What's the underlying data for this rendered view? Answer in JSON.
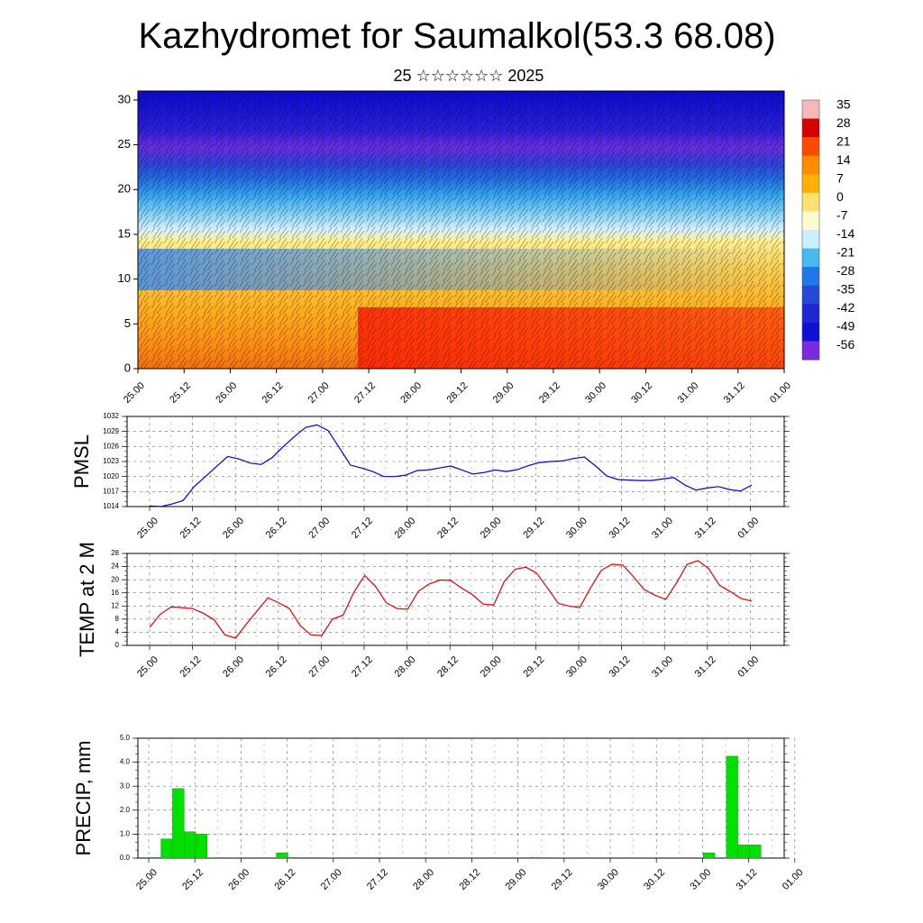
{
  "header": {
    "title": "Kazhydromet for Saumalkol(53.3 68.08)",
    "subtitle": "25 ☆☆☆☆☆☆ 2025"
  },
  "time_axis": {
    "tick_labels": [
      "25.00",
      "25.12",
      "26.00",
      "26.12",
      "27.00",
      "27.12",
      "28.00",
      "28.12",
      "29.00",
      "29.12",
      "30.00",
      "30.12",
      "31.00",
      "31.12",
      "01.00"
    ]
  },
  "colorbar": {
    "labels": [
      "35",
      "28",
      "21",
      "14",
      "7",
      "0",
      "-7",
      "-14",
      "-21",
      "-28",
      "-35",
      "-42",
      "-49",
      "-56"
    ],
    "colors": [
      "#f7b8b8",
      "#d50000",
      "#ff4a00",
      "#ff8c00",
      "#ffb000",
      "#ffe070",
      "#fffbd0",
      "#c8f0ff",
      "#4ab8f0",
      "#1e78e8",
      "#2548d8",
      "#1c28d0",
      "#1010d0",
      "#7a2adf"
    ]
  },
  "chart_data": [
    {
      "type": "heatmap",
      "name_hint": "vertical cross-section",
      "x_tick_labels": [
        "25.00",
        "25.12",
        "26.00",
        "26.12",
        "27.00",
        "27.12",
        "28.00",
        "28.12",
        "29.00",
        "29.12",
        "30.00",
        "30.12",
        "31.00",
        "31.12",
        "01.00"
      ],
      "y_tick_labels": [
        "0",
        "5",
        "10",
        "15",
        "20",
        "25",
        "30"
      ],
      "ylim": [
        0,
        31
      ]
    },
    {
      "type": "line",
      "ylabel": "PMSL",
      "y_tick_labels": [
        "1014",
        "1017",
        "1020",
        "1023",
        "1026",
        "1029",
        "1032"
      ],
      "ylim": [
        1014,
        1032
      ],
      "x_tick_labels": [
        "25.00",
        "25.12",
        "26.00",
        "26.12",
        "27.00",
        "27.12",
        "28.00",
        "28.12",
        "29.00",
        "29.12",
        "30.00",
        "30.12",
        "31.00",
        "31.12",
        "01.00"
      ],
      "color": "#0000cc",
      "series": [
        {
          "values": [
            1014.1,
            1014.0,
            1014.5,
            1015.2,
            1018.0,
            1020.0,
            1022.0,
            1024.0,
            1023.5,
            1022.7,
            1022.4,
            1023.8,
            1026.0,
            1028.0,
            1029.8,
            1030.3,
            1029.2,
            1025.8,
            1022.3,
            1021.7,
            1021.0,
            1020.0,
            1020.0,
            1020.3,
            1021.2,
            1021.3,
            1021.7,
            1022.1,
            1021.3,
            1020.5,
            1020.8,
            1021.3,
            1021.0,
            1021.4,
            1022.2,
            1022.8,
            1023.0,
            1023.1,
            1023.6,
            1023.9,
            1022.1,
            1020.1,
            1019.4,
            1019.3,
            1019.2,
            1019.2,
            1019.5,
            1019.8,
            1018.3,
            1017.3,
            1017.7,
            1018.0,
            1017.4,
            1017.1,
            1018.3
          ]
        }
      ]
    },
    {
      "type": "line",
      "ylabel": "TEMP at 2 M",
      "y_tick_labels": [
        "0",
        "4",
        "8",
        "12",
        "16",
        "20",
        "24",
        "28"
      ],
      "ylim": [
        0,
        28
      ],
      "x_tick_labels": [
        "25.00",
        "25.12",
        "26.00",
        "26.12",
        "27.00",
        "27.12",
        "28.00",
        "28.12",
        "29.00",
        "29.12",
        "30.00",
        "30.12",
        "31.00",
        "31.12",
        "01.00"
      ],
      "color": "#dd0000",
      "series": [
        {
          "values": [
            5.5,
            9.5,
            11.7,
            11.5,
            11.2,
            9.8,
            7.8,
            3.2,
            2.2,
            6.5,
            10.5,
            14.5,
            13.0,
            11.2,
            6.0,
            3.2,
            3.0,
            8.0,
            9.2,
            16.2,
            21.3,
            18.0,
            13.0,
            11.2,
            11.0,
            16.5,
            18.7,
            19.9,
            19.8,
            17.5,
            15.5,
            12.6,
            12.3,
            19.5,
            23.2,
            23.8,
            22.0,
            17.5,
            12.8,
            12.0,
            11.5,
            17.5,
            22.8,
            24.7,
            24.5,
            20.9,
            17.0,
            15.3,
            14.0,
            19.0,
            24.7,
            25.8,
            23.4,
            18.3,
            16.4,
            14.3,
            13.5
          ]
        }
      ]
    },
    {
      "type": "bar",
      "ylabel": "PRECIP, mm",
      "y_tick_labels": [
        "0.0",
        "1.0",
        "2.0",
        "3.0",
        "4.0",
        "5.0"
      ],
      "ylim": [
        0,
        5
      ],
      "x_tick_labels": [
        "25.00",
        "25.12",
        "26.00",
        "26.12",
        "27.00",
        "27.12",
        "28.00",
        "28.12",
        "29.00",
        "29.12",
        "30.00",
        "30.12",
        "31.00",
        "31.12",
        "01.00"
      ],
      "color": "#00e000",
      "bars": [
        {
          "slot": 1,
          "value": 0.03
        },
        {
          "slot": 2,
          "value": 0.8
        },
        {
          "slot": 3,
          "value": 2.9
        },
        {
          "slot": 4,
          "value": 1.1
        },
        {
          "slot": 5,
          "value": 1.0
        },
        {
          "slot": 12,
          "value": 0.22
        },
        {
          "slot": 13,
          "value": 0.03
        },
        {
          "slot": 34,
          "value": 0.03
        },
        {
          "slot": 49,
          "value": 0.22
        },
        {
          "slot": 51,
          "value": 4.25
        },
        {
          "slot": 52,
          "value": 0.55
        },
        {
          "slot": 53,
          "value": 0.55
        }
      ]
    }
  ]
}
